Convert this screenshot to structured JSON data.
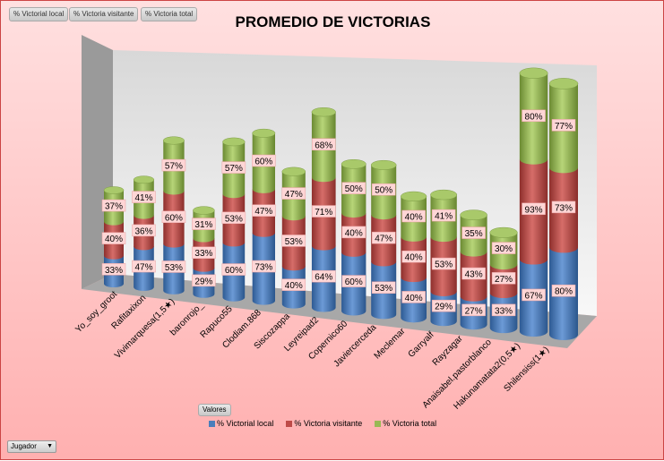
{
  "filter_buttons": [
    "% Victorial local",
    "% Victoria visitante",
    "% Victoria total"
  ],
  "chart_data": {
    "type": "bar",
    "subtype": "3d-stacked-cylinder",
    "title": "PROMEDIO DE VICTORIAS",
    "categories": [
      "Yo_soy_groot",
      "Rafitaxixon",
      "Vivimarquesa(1,5★)",
      "baronrojo_",
      "Rapuco55",
      "Clodiam.868",
      "Siscozappa",
      "Leyreipad2",
      "Copernico60",
      "Javiercerceda",
      "Meclemar",
      "Garryalf",
      "Rayzagar",
      "Anaisabel.pastorblanco",
      "Hakunamatata2(0,5★)",
      "Shilensiss(1★)"
    ],
    "series": [
      {
        "name": "% Victorial local",
        "color": "#4a7ebb",
        "values": [
          33,
          47,
          53,
          29,
          60,
          73,
          40,
          64,
          60,
          53,
          40,
          29,
          27,
          33,
          67,
          80
        ]
      },
      {
        "name": "% Victoria visitante",
        "color": "#be4b48",
        "values": [
          40,
          36,
          60,
          33,
          53,
          47,
          53,
          71,
          40,
          47,
          40,
          53,
          43,
          27,
          93,
          73
        ]
      },
      {
        "name": "% Victoria total",
        "color": "#98b954",
        "values": [
          37,
          41,
          57,
          31,
          57,
          60,
          47,
          68,
          50,
          50,
          40,
          41,
          35,
          30,
          80,
          77
        ]
      }
    ],
    "value_format": "percent",
    "legend": "bottom"
  },
  "valores_label": "Valores",
  "jugador_label": "Jugador"
}
